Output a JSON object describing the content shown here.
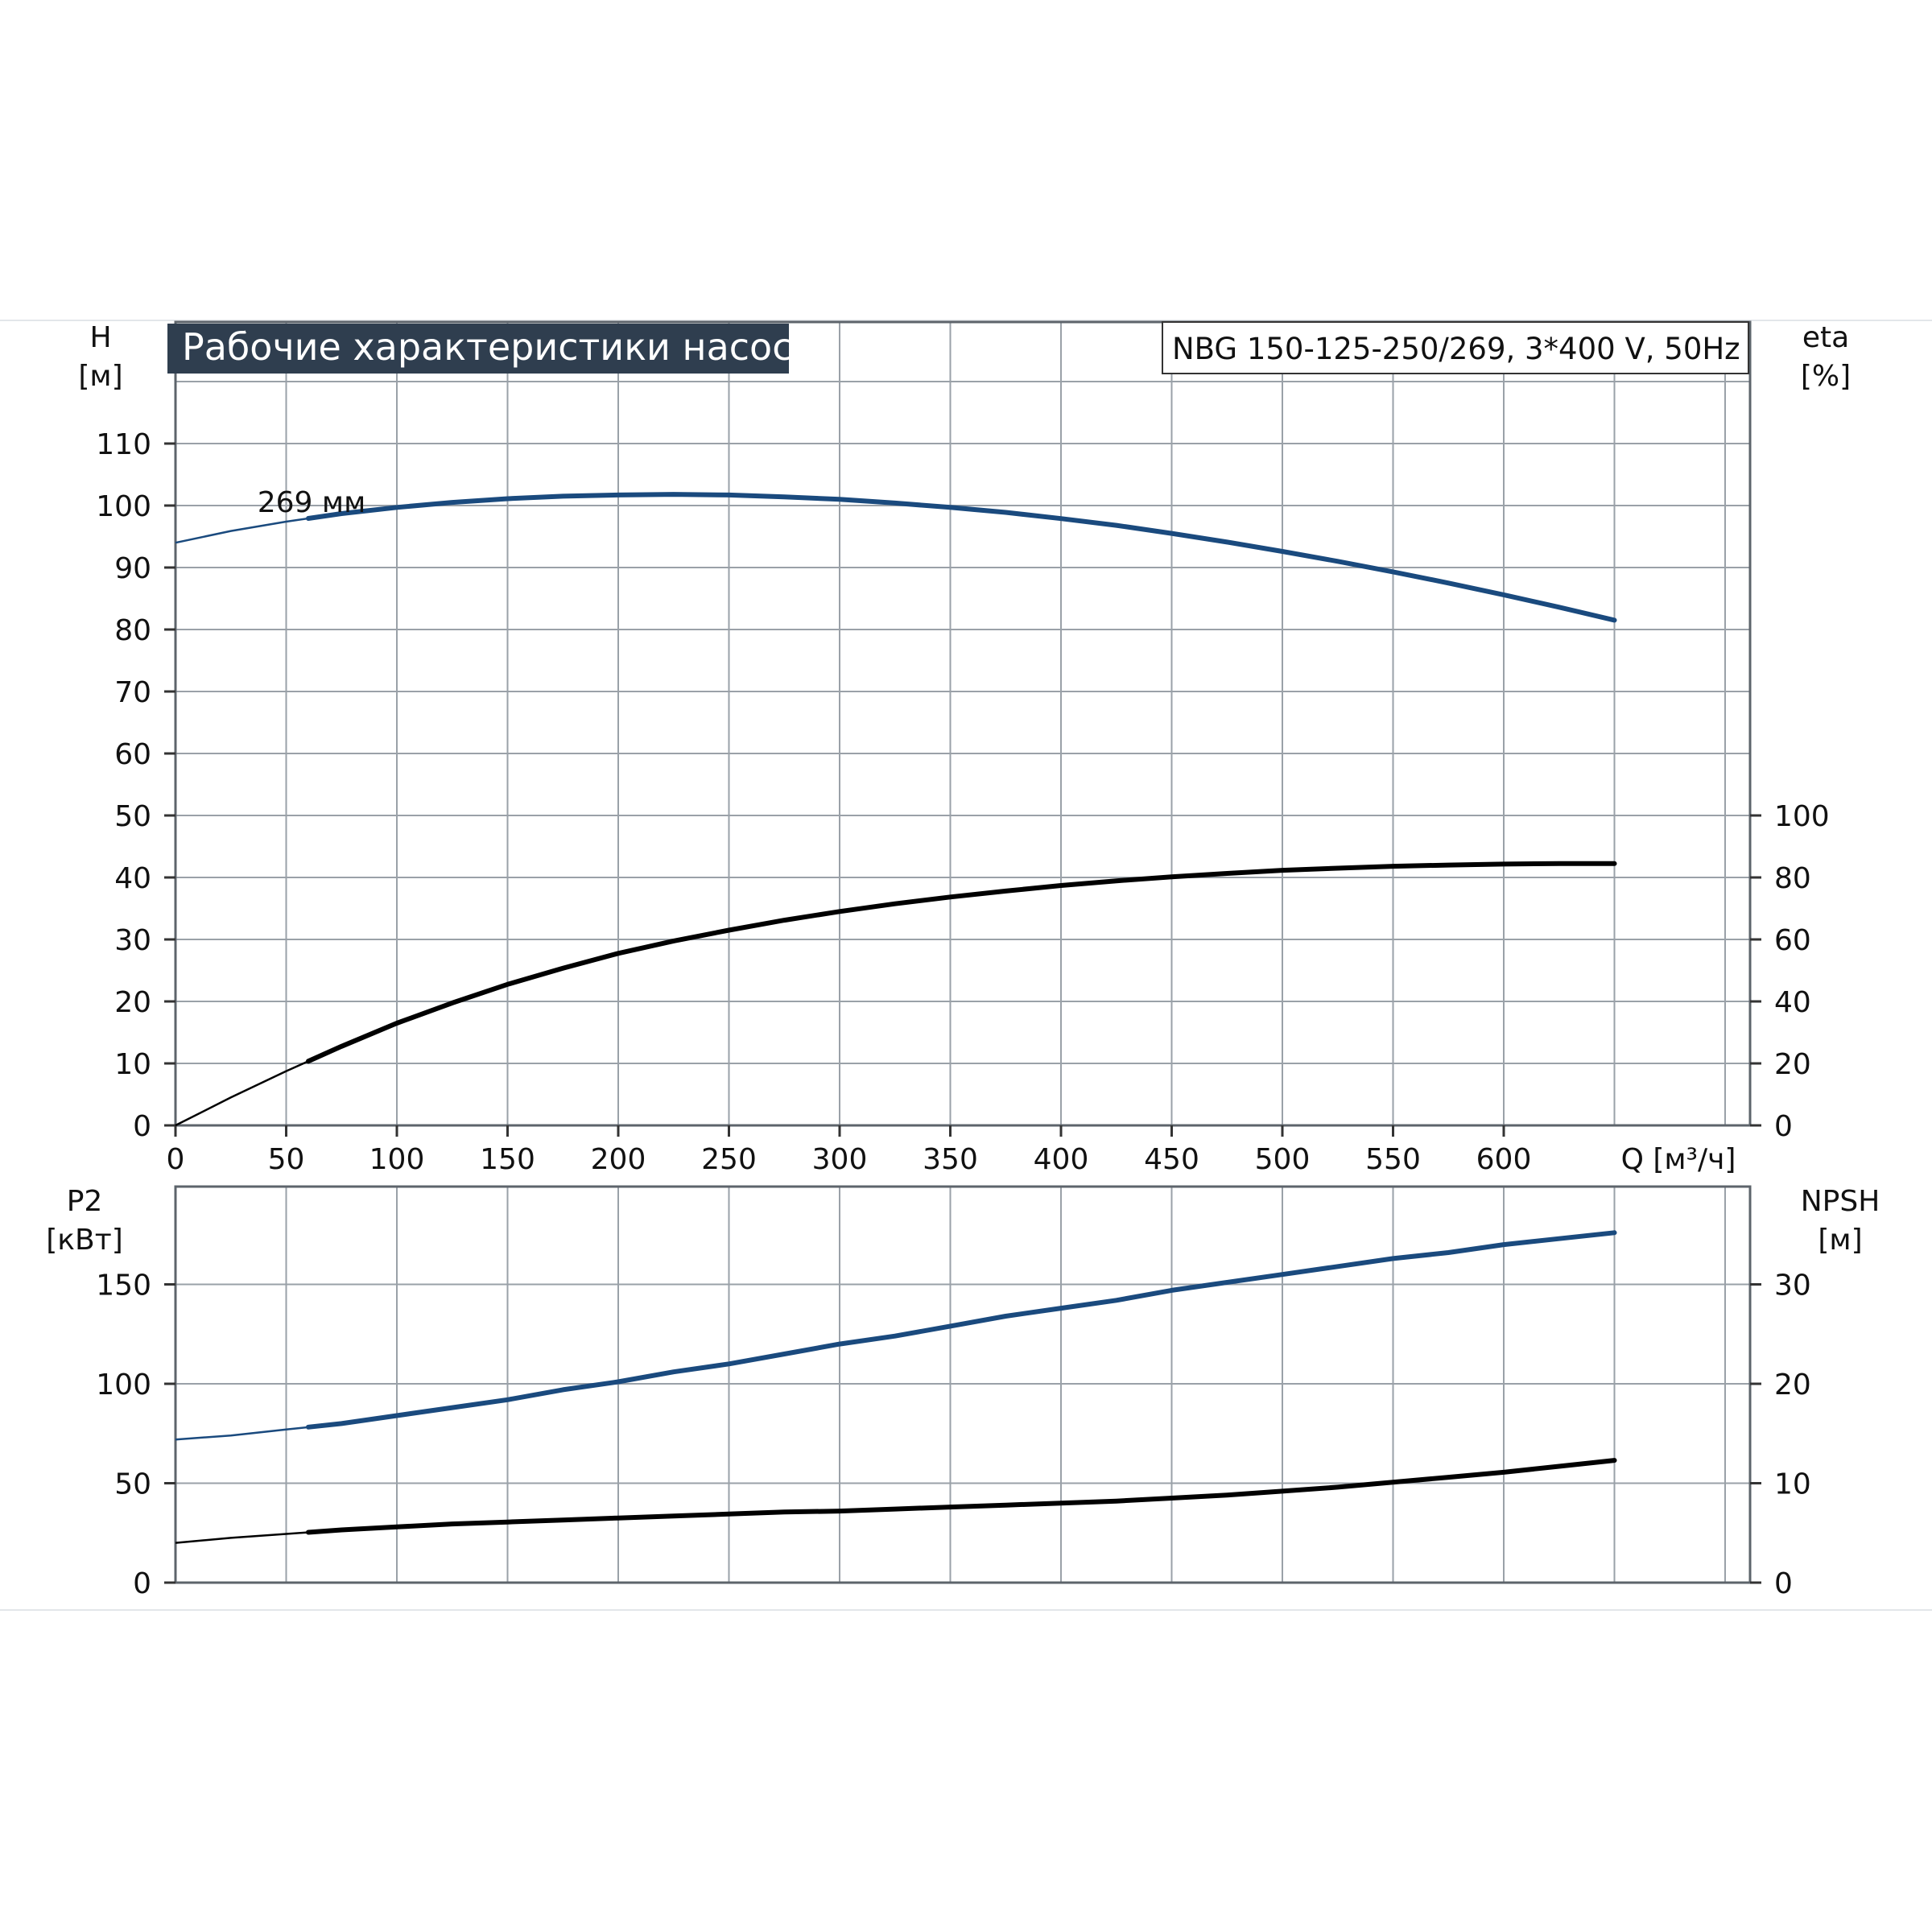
{
  "title": "Рабочие характеристики насоса",
  "model": "NBG 150-125-250/269, 3*400 V, 50Hz",
  "colors": {
    "title_bg": "#2f3e4f",
    "grid": "#9aa1a8",
    "blue_curve": "#1a4a7e",
    "black_curve": "#000000"
  },
  "chart_data": [
    {
      "type": "line",
      "panel": "top",
      "x_axis": {
        "label": "Q [м³/ч]",
        "ticks": [
          0,
          50,
          100,
          150,
          200,
          250,
          300,
          350,
          400,
          450,
          500,
          550,
          600
        ],
        "range": [
          0,
          710
        ]
      },
      "y_left": {
        "label_line1": "H",
        "label_line2": "[м]",
        "ticks": [
          0,
          10,
          20,
          30,
          40,
          50,
          60,
          70,
          80,
          90,
          100,
          110
        ],
        "range": [
          0,
          120
        ]
      },
      "y_right": {
        "label_line1": "eta",
        "label_line2": "[%]",
        "ticks": [
          0,
          20,
          40,
          60,
          80,
          100
        ],
        "range_shown": [
          0,
          100
        ]
      },
      "grid": true,
      "series": [
        {
          "name": "269 мм",
          "axis": "left",
          "color": "#1a4a7e",
          "x": [
            0,
            25,
            50,
            75,
            100,
            125,
            150,
            175,
            200,
            225,
            250,
            275,
            300,
            325,
            350,
            375,
            400,
            425,
            450,
            475,
            500,
            525,
            550,
            575,
            600,
            625,
            650
          ],
          "y": [
            94.0,
            95.9,
            97.4,
            98.7,
            99.7,
            100.5,
            101.1,
            101.5,
            101.7,
            101.8,
            101.7,
            101.4,
            101.0,
            100.4,
            99.7,
            98.9,
            97.9,
            96.8,
            95.5,
            94.1,
            92.6,
            91.0,
            89.3,
            87.5,
            85.6,
            83.6,
            81.5
          ]
        },
        {
          "axis": "right",
          "color": "#000000",
          "x": [
            0,
            25,
            50,
            75,
            100,
            125,
            150,
            175,
            200,
            225,
            250,
            275,
            300,
            325,
            350,
            375,
            400,
            425,
            450,
            475,
            500,
            525,
            550,
            575,
            600,
            625,
            650
          ],
          "y": [
            0,
            9.0,
            17.5,
            25.5,
            33.0,
            39.5,
            45.5,
            50.7,
            55.5,
            59.5,
            63.0,
            66.2,
            69.0,
            71.5,
            73.7,
            75.6,
            77.4,
            78.9,
            80.2,
            81.3,
            82.3,
            83.0,
            83.6,
            84.0,
            84.3,
            84.5,
            84.5
          ]
        }
      ]
    },
    {
      "type": "line",
      "panel": "bottom",
      "x_axis": {
        "ticks": [
          0,
          50,
          100,
          150,
          200,
          250,
          300,
          350,
          400,
          450,
          500,
          550,
          600
        ],
        "range": [
          0,
          710
        ]
      },
      "y_left": {
        "label_line1": "P2",
        "label_line2": "[кВт]",
        "ticks": [
          0,
          50,
          100,
          150
        ],
        "range": [
          0,
          200
        ]
      },
      "y_right": {
        "label_line1": "NPSH",
        "label_line2": "[м]",
        "ticks": [
          0,
          10,
          20,
          30
        ],
        "range": [
          0,
          40
        ]
      },
      "grid": true,
      "series": [
        {
          "axis": "left",
          "color": "#1a4a7e",
          "x": [
            0,
            25,
            50,
            75,
            100,
            125,
            150,
            175,
            200,
            225,
            250,
            275,
            300,
            325,
            350,
            375,
            400,
            425,
            450,
            475,
            500,
            525,
            550,
            575,
            600,
            625,
            650
          ],
          "y": [
            72,
            74,
            77,
            80,
            84,
            88,
            92,
            97,
            101,
            106,
            110,
            115,
            120,
            124,
            129,
            134,
            138,
            142,
            147,
            151,
            155,
            159,
            163,
            166,
            170,
            173,
            176
          ]
        },
        {
          "axis": "right",
          "color": "#000000",
          "x": [
            0,
            25,
            50,
            75,
            100,
            125,
            150,
            175,
            200,
            225,
            250,
            275,
            300,
            325,
            350,
            375,
            400,
            425,
            450,
            475,
            500,
            525,
            550,
            575,
            600,
            625,
            650
          ],
          "y": [
            4.0,
            4.5,
            4.9,
            5.3,
            5.6,
            5.9,
            6.1,
            6.3,
            6.5,
            6.7,
            6.9,
            7.1,
            7.2,
            7.4,
            7.6,
            7.8,
            8.0,
            8.2,
            8.5,
            8.8,
            9.2,
            9.6,
            10.1,
            10.6,
            11.1,
            11.7,
            12.3
          ]
        }
      ]
    }
  ]
}
